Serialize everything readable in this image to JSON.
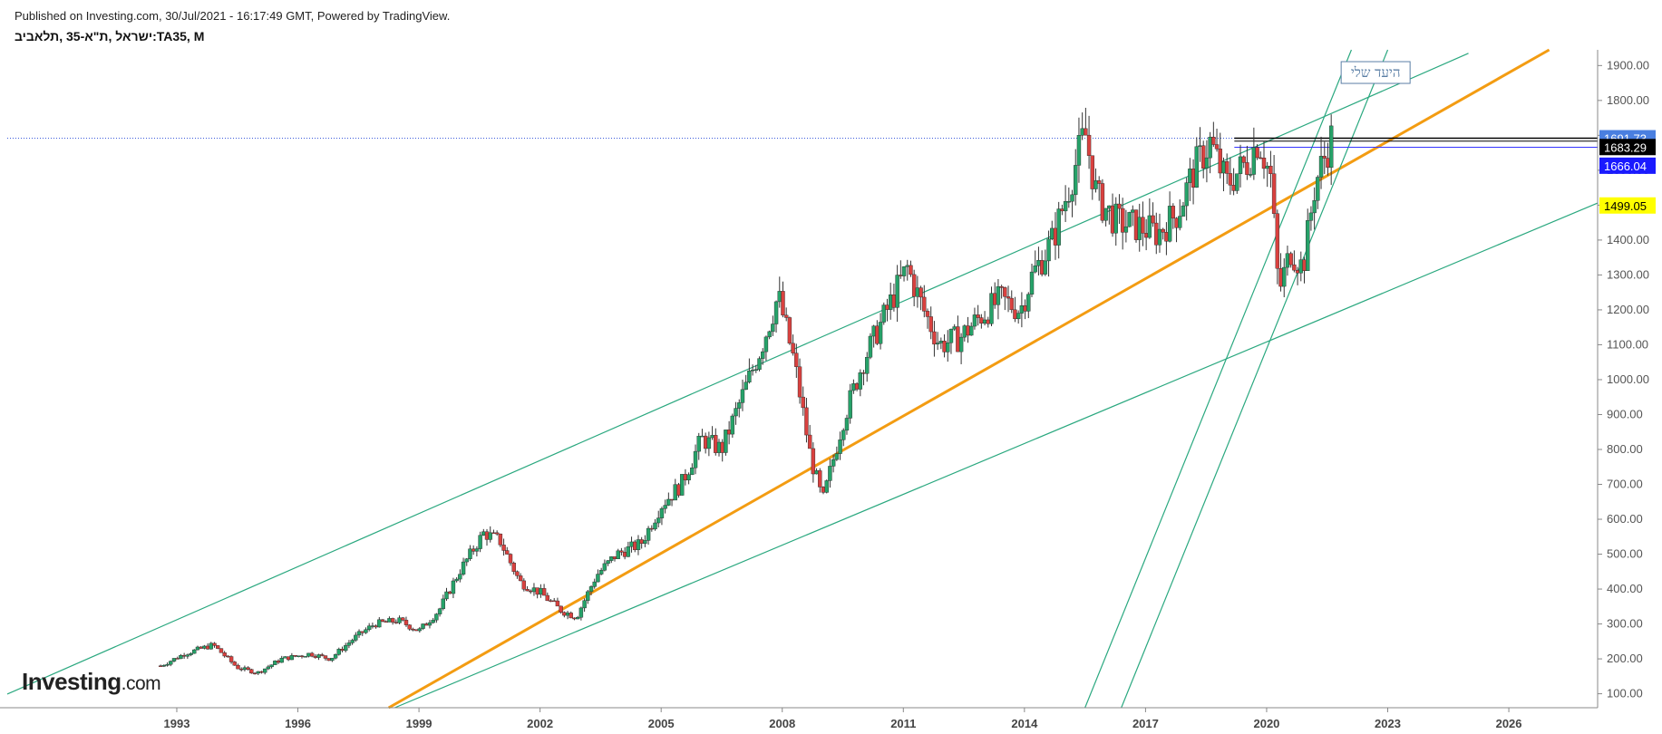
{
  "header": {
    "published": "Published on Investing.com, 30/Jul/2021 - 16:17:49 GMT, Powered by TradingView.",
    "symbol": "ישראל ,ת\"א-35 ,תלאביב:TA35, M"
  },
  "logo": {
    "brand": "Investing",
    "suffix": ".com"
  },
  "annotation": {
    "text": "היעד שלי"
  },
  "colors": {
    "up": "#26a269",
    "down": "#d9413f",
    "trend": "#f39c12",
    "channel": "#2aa87f",
    "dotted": "#3b5bdb",
    "badge_last": "#4a7fe0",
    "badge_black": "#000000",
    "badge_blue": "#1a1aff",
    "badge_yellow": "#ffff00",
    "axis_text": "#555555"
  },
  "chart_data": {
    "type": "candlestick",
    "title": "ישראל ,ת\"א-35 ,תלאביב:TA35, M",
    "x_axis": {
      "ticks": [
        "1993",
        "1996",
        "1999",
        "2002",
        "2005",
        "2008",
        "2011",
        "2014",
        "2017",
        "2020",
        "2023",
        "2026"
      ],
      "range": [
        1988.8,
        2028.2
      ]
    },
    "y_axis": {
      "ticks": [
        "100.00",
        "200.00",
        "300.00",
        "400.00",
        "500.00",
        "600.00",
        "700.00",
        "800.00",
        "900.00",
        "1000.00",
        "1100.00",
        "1200.00",
        "1300.00",
        "1400.00",
        "1500.00",
        "1600.00",
        "1700.00",
        "1800.00",
        "1900.00"
      ],
      "range": [
        60,
        1945
      ]
    },
    "price_labels": [
      {
        "value": 1691.73,
        "label": "1691.73",
        "style": "last"
      },
      {
        "value": 1683.29,
        "label": "1683.29",
        "style": "black"
      },
      {
        "value": 1666.04,
        "label": "1666.04",
        "style": "blue"
      },
      {
        "value": 1499.05,
        "label": "1499.05",
        "style": "yellow"
      }
    ],
    "close_path": [
      [
        1992.6,
        180
      ],
      [
        1993.2,
        215
      ],
      [
        1993.9,
        240
      ],
      [
        1994.5,
        175
      ],
      [
        1995.0,
        160
      ],
      [
        1995.6,
        200
      ],
      [
        1996.3,
        215
      ],
      [
        1996.8,
        200
      ],
      [
        1997.4,
        260
      ],
      [
        1997.9,
        300
      ],
      [
        1998.5,
        310
      ],
      [
        1999.0,
        280
      ],
      [
        1999.5,
        340
      ],
      [
        2000.0,
        450
      ],
      [
        2000.6,
        560
      ],
      [
        2001.0,
        540
      ],
      [
        2001.5,
        420
      ],
      [
        2002.0,
        390
      ],
      [
        2002.5,
        340
      ],
      [
        2002.9,
        320
      ],
      [
        2003.4,
        440
      ],
      [
        2003.9,
        500
      ],
      [
        2004.5,
        530
      ],
      [
        2005.0,
        640
      ],
      [
        2005.5,
        700
      ],
      [
        2006.0,
        830
      ],
      [
        2006.5,
        800
      ],
      [
        2007.0,
        950
      ],
      [
        2007.5,
        1100
      ],
      [
        2007.9,
        1240
      ],
      [
        2008.3,
        1050
      ],
      [
        2008.7,
        780
      ],
      [
        2009.0,
        650
      ],
      [
        2009.5,
        880
      ],
      [
        2010.0,
        1050
      ],
      [
        2010.4,
        1150
      ],
      [
        2010.8,
        1250
      ],
      [
        2011.1,
        1320
      ],
      [
        2011.5,
        1200
      ],
      [
        2011.9,
        1100
      ],
      [
        2012.4,
        1120
      ],
      [
        2012.9,
        1180
      ],
      [
        2013.4,
        1230
      ],
      [
        2013.9,
        1200
      ],
      [
        2014.2,
        1300
      ],
      [
        2014.7,
        1400
      ],
      [
        2015.1,
        1550
      ],
      [
        2015.5,
        1710
      ],
      [
        2015.8,
        1520
      ],
      [
        2016.3,
        1450
      ],
      [
        2016.8,
        1440
      ],
      [
        2017.3,
        1420
      ],
      [
        2017.8,
        1480
      ],
      [
        2018.2,
        1600
      ],
      [
        2018.6,
        1680
      ],
      [
        2019.0,
        1560
      ],
      [
        2019.5,
        1620
      ],
      [
        2019.8,
        1690
      ],
      [
        2020.1,
        1580
      ],
      [
        2020.3,
        1250
      ],
      [
        2020.6,
        1370
      ],
      [
        2020.9,
        1320
      ],
      [
        2021.2,
        1560
      ],
      [
        2021.6,
        1691.73
      ]
    ],
    "lines": [
      {
        "name": "trend",
        "points": [
          [
            1998.25,
            60
          ],
          [
            2027.0,
            1945
          ]
        ]
      },
      {
        "name": "channel-upper",
        "points": [
          [
            1988.8,
            99
          ],
          [
            2025.0,
            1935
          ]
        ]
      },
      {
        "name": "channel-lower",
        "points": [
          [
            1998.4,
            60
          ],
          [
            2028.2,
            1506
          ]
        ]
      },
      {
        "name": "steep-1",
        "points": [
          [
            2015.5,
            60
          ],
          [
            2022.1,
            1945
          ]
        ]
      },
      {
        "name": "steep-2",
        "points": [
          [
            2016.4,
            60
          ],
          [
            2023.0,
            1945
          ]
        ]
      }
    ]
  }
}
